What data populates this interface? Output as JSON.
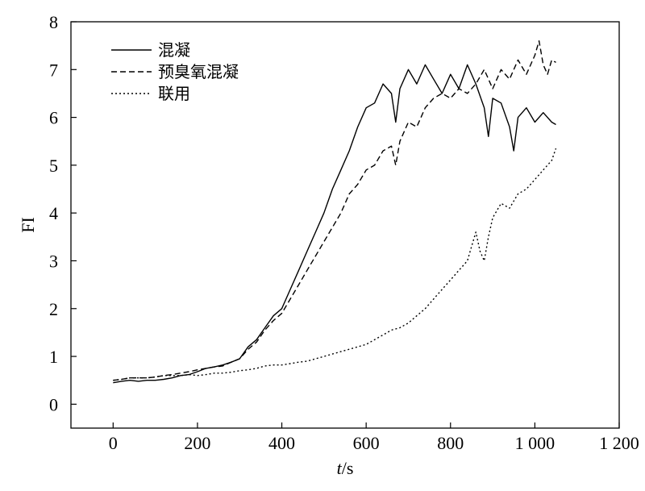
{
  "chart_data": {
    "type": "line",
    "xlabel_italic": "t",
    "xlabel_unit": "/s",
    "ylabel": "FI",
    "xlim": [
      -100,
      1200
    ],
    "ylim": [
      -0.5,
      8
    ],
    "xticks": [
      0,
      200,
      400,
      600,
      800,
      1000,
      1200
    ],
    "xtick_labels": [
      "0",
      "200",
      "400",
      "600",
      "800",
      "1 000",
      "1 200"
    ],
    "yticks": [
      0,
      1,
      2,
      3,
      4,
      5,
      6,
      7,
      8
    ],
    "ytick_labels": [
      "0",
      "1",
      "2",
      "3",
      "4",
      "5",
      "6",
      "7",
      "8"
    ],
    "grid": false,
    "legend_position": "top-left",
    "series": [
      {
        "name": "混凝",
        "dash": "solid",
        "x": [
          0,
          20,
          40,
          60,
          80,
          100,
          120,
          140,
          160,
          180,
          200,
          220,
          240,
          260,
          280,
          300,
          320,
          340,
          360,
          380,
          400,
          420,
          440,
          460,
          480,
          500,
          520,
          540,
          560,
          580,
          600,
          620,
          640,
          660,
          670,
          680,
          700,
          720,
          740,
          760,
          780,
          800,
          820,
          840,
          860,
          880,
          890,
          900,
          920,
          940,
          950,
          960,
          980,
          1000,
          1020,
          1040,
          1050
        ],
        "y": [
          0.45,
          0.48,
          0.5,
          0.48,
          0.5,
          0.5,
          0.52,
          0.55,
          0.6,
          0.62,
          0.68,
          0.75,
          0.78,
          0.82,
          0.88,
          0.95,
          1.2,
          1.35,
          1.6,
          1.85,
          2.0,
          2.4,
          2.8,
          3.2,
          3.6,
          4.0,
          4.5,
          4.9,
          5.3,
          5.8,
          6.2,
          6.3,
          6.7,
          6.5,
          5.9,
          6.6,
          7.0,
          6.7,
          7.1,
          6.8,
          6.5,
          6.9,
          6.6,
          7.1,
          6.7,
          6.2,
          5.6,
          6.4,
          6.3,
          5.8,
          5.3,
          6.0,
          6.2,
          5.9,
          6.1,
          5.9,
          5.85
        ]
      },
      {
        "name": "预臭氧混凝",
        "dash": "dashed",
        "x": [
          0,
          20,
          40,
          60,
          80,
          100,
          120,
          140,
          160,
          180,
          200,
          220,
          240,
          260,
          280,
          300,
          320,
          340,
          360,
          380,
          400,
          420,
          440,
          460,
          480,
          500,
          520,
          540,
          560,
          580,
          600,
          620,
          640,
          660,
          670,
          680,
          700,
          720,
          740,
          760,
          780,
          800,
          820,
          840,
          860,
          880,
          900,
          920,
          940,
          960,
          980,
          1000,
          1010,
          1020,
          1030,
          1040,
          1050
        ],
        "y": [
          0.5,
          0.52,
          0.55,
          0.55,
          0.55,
          0.57,
          0.6,
          0.62,
          0.65,
          0.68,
          0.72,
          0.75,
          0.78,
          0.8,
          0.88,
          0.95,
          1.15,
          1.3,
          1.55,
          1.75,
          1.9,
          2.2,
          2.5,
          2.8,
          3.1,
          3.4,
          3.7,
          4.0,
          4.4,
          4.6,
          4.9,
          5.0,
          5.3,
          5.4,
          5.0,
          5.5,
          5.9,
          5.8,
          6.2,
          6.4,
          6.5,
          6.4,
          6.6,
          6.5,
          6.7,
          7.0,
          6.6,
          7.0,
          6.8,
          7.2,
          6.9,
          7.3,
          7.6,
          7.1,
          6.9,
          7.2,
          7.15
        ]
      },
      {
        "name": "联用",
        "dash": "dotted",
        "x": [
          0,
          20,
          40,
          60,
          80,
          100,
          120,
          140,
          160,
          180,
          200,
          220,
          240,
          260,
          280,
          300,
          320,
          340,
          360,
          380,
          400,
          420,
          440,
          460,
          480,
          500,
          520,
          540,
          560,
          580,
          600,
          620,
          640,
          660,
          680,
          700,
          720,
          740,
          760,
          780,
          800,
          820,
          840,
          850,
          860,
          870,
          880,
          890,
          900,
          920,
          940,
          960,
          980,
          1000,
          1020,
          1040,
          1050
        ],
        "y": [
          0.5,
          0.52,
          0.55,
          0.55,
          0.55,
          0.57,
          0.6,
          0.6,
          0.6,
          0.62,
          0.6,
          0.62,
          0.65,
          0.65,
          0.67,
          0.7,
          0.72,
          0.75,
          0.8,
          0.82,
          0.82,
          0.85,
          0.88,
          0.9,
          0.95,
          1.0,
          1.05,
          1.1,
          1.15,
          1.2,
          1.25,
          1.35,
          1.45,
          1.55,
          1.6,
          1.7,
          1.85,
          2.0,
          2.2,
          2.4,
          2.6,
          2.8,
          3.0,
          3.3,
          3.6,
          3.2,
          3.0,
          3.5,
          3.9,
          4.2,
          4.1,
          4.4,
          4.5,
          4.7,
          4.9,
          5.1,
          5.35
        ]
      }
    ]
  }
}
